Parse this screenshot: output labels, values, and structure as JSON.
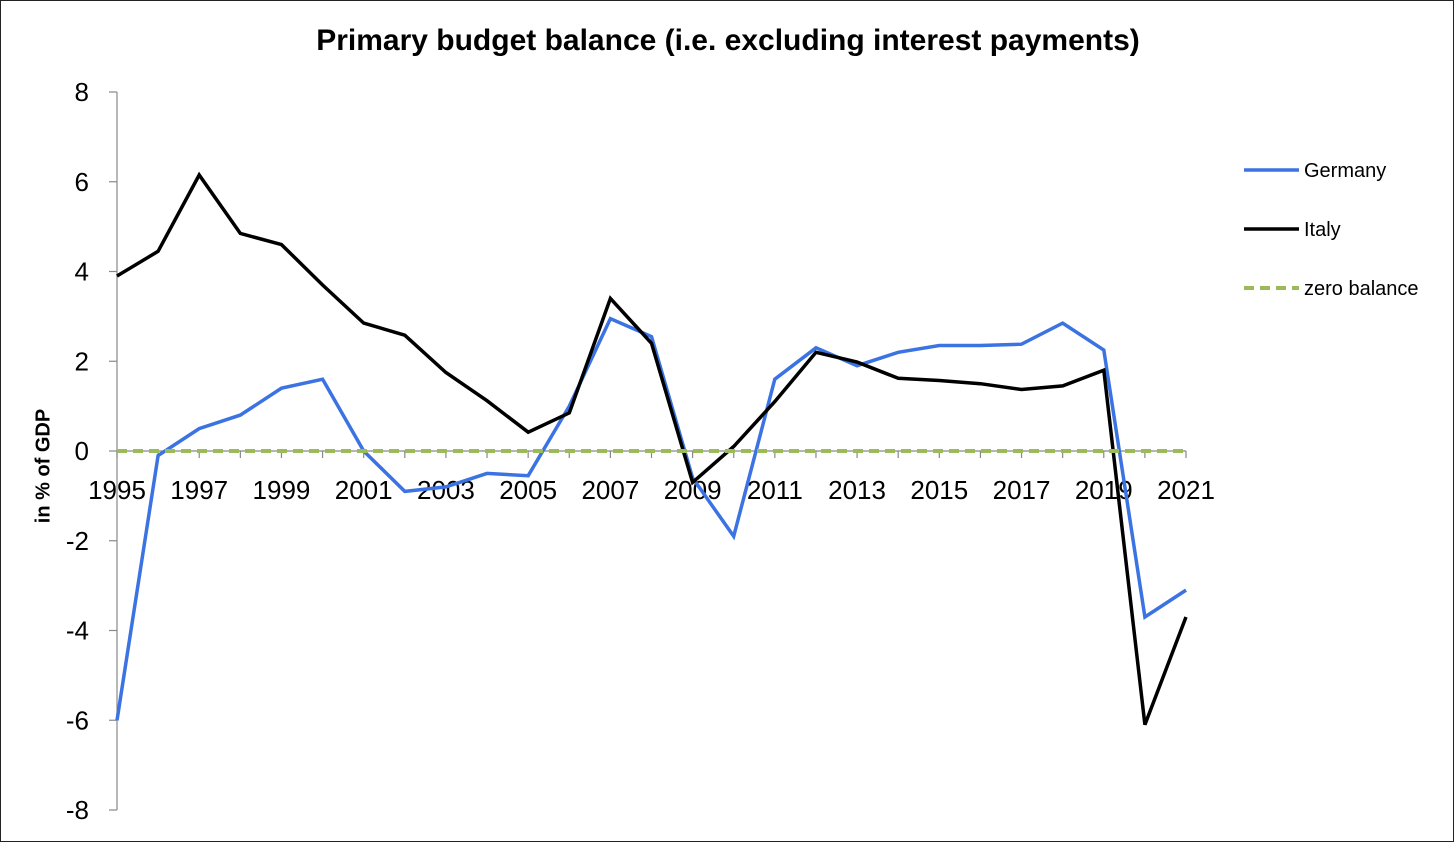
{
  "chart_data": {
    "type": "line",
    "title": "Primary budget balance (i.e. excluding interest payments)",
    "ylabel": "in % of GDP",
    "xlabel": "",
    "ylim": [
      -8,
      8
    ],
    "yticks": [
      8,
      6,
      4,
      2,
      0,
      -2,
      -4,
      -6,
      -8
    ],
    "x": [
      1995,
      1996,
      1997,
      1998,
      1999,
      2000,
      2001,
      2002,
      2003,
      2004,
      2005,
      2006,
      2007,
      2008,
      2009,
      2010,
      2011,
      2012,
      2013,
      2014,
      2015,
      2016,
      2017,
      2018,
      2019,
      2020,
      2021
    ],
    "xtick_labels": [
      "1995",
      "1997",
      "1999",
      "2001",
      "2003",
      "2005",
      "2007",
      "2009",
      "2011",
      "2013",
      "2015",
      "2017",
      "2019",
      "2021"
    ],
    "legend_position": "right",
    "series": [
      {
        "name": "Germany",
        "color": "#3b73e3",
        "style": "solid",
        "values": [
          -6.0,
          -0.1,
          0.5,
          0.8,
          1.4,
          1.6,
          0.0,
          -0.9,
          -0.8,
          -0.5,
          -0.55,
          1.0,
          2.95,
          2.55,
          -0.6,
          -1.9,
          1.6,
          2.3,
          1.9,
          2.2,
          2.35,
          2.35,
          2.38,
          2.85,
          2.25,
          -3.7,
          -3.1
        ]
      },
      {
        "name": "Italy",
        "color": "#000000",
        "style": "solid",
        "values": [
          3.9,
          4.45,
          6.15,
          4.85,
          4.6,
          3.7,
          2.85,
          2.58,
          1.75,
          1.12,
          0.42,
          0.85,
          3.4,
          2.4,
          -0.7,
          0.1,
          1.1,
          2.2,
          1.98,
          1.62,
          1.57,
          1.5,
          1.37,
          1.45,
          1.8,
          -6.1,
          -3.7
        ]
      },
      {
        "name": "zero balance",
        "color": "#9bbb59",
        "style": "dashed",
        "values": [
          0,
          0,
          0,
          0,
          0,
          0,
          0,
          0,
          0,
          0,
          0,
          0,
          0,
          0,
          0,
          0,
          0,
          0,
          0,
          0,
          0,
          0,
          0,
          0,
          0,
          0,
          0
        ]
      }
    ]
  }
}
